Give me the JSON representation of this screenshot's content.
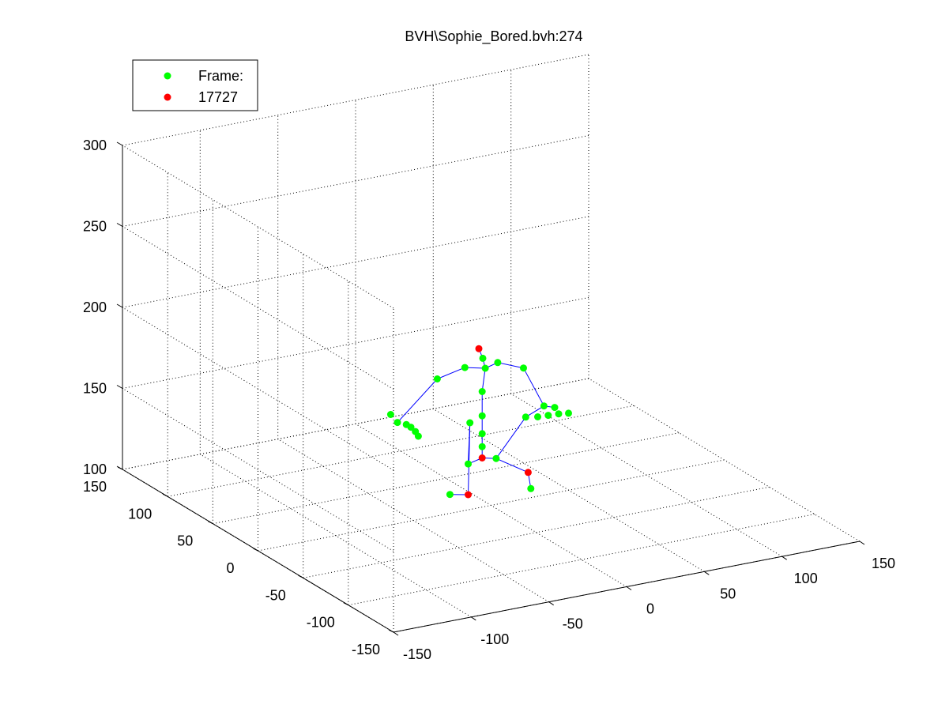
{
  "chart_data": {
    "type": "scatter",
    "title": "BVH\\Sophie_Bored.bvh:274",
    "xlim": [
      -150,
      150
    ],
    "ylim": [
      -150,
      150
    ],
    "zlim": [
      100,
      300
    ],
    "x_ticks": [
      "-150",
      "-100",
      "-50",
      "0",
      "50",
      "100",
      "150"
    ],
    "y_ticks": [
      "-150",
      "-100",
      "-50",
      "0",
      "50",
      "100",
      "150"
    ],
    "z_ticks": [
      "100",
      "150",
      "200",
      "250",
      "300"
    ],
    "grid": true,
    "legend": {
      "placement": "top-left",
      "entries": [
        {
          "label": "Frame:",
          "color": "#00ff00"
        },
        {
          "label": "17727",
          "color": "#ff0000"
        }
      ]
    },
    "colors": {
      "joint": "#00ff00",
      "end_effector": "#ff0000",
      "bone": "#0000ff"
    },
    "joints": [
      {
        "name": "head-top",
        "x": -5,
        "y": 5,
        "z": 196,
        "color": "red"
      },
      {
        "name": "head",
        "x": -3,
        "y": 4,
        "z": 190
      },
      {
        "name": "neck",
        "x": -2,
        "y": 3,
        "z": 184
      },
      {
        "name": "neck-left",
        "x": -14,
        "y": 5,
        "z": 186
      },
      {
        "name": "neck-right",
        "x": 6,
        "y": 3,
        "z": 186
      },
      {
        "name": "left-shoulder",
        "x": -30,
        "y": 8,
        "z": 181
      },
      {
        "name": "right-shoulder",
        "x": 22,
        "y": 2,
        "z": 180
      },
      {
        "name": "spine-3",
        "x": -4,
        "y": 3,
        "z": 170
      },
      {
        "name": "spine-2",
        "x": -4,
        "y": 3,
        "z": 155
      },
      {
        "name": "spine-1",
        "x": -4,
        "y": 3,
        "z": 144
      },
      {
        "name": "spine-0",
        "x": -4,
        "y": 3,
        "z": 136
      },
      {
        "name": "hips",
        "x": -4,
        "y": 3,
        "z": 129,
        "color": "red"
      },
      {
        "name": "left-hip",
        "x": -13,
        "y": 3,
        "z": 127
      },
      {
        "name": "right-hip",
        "x": 5,
        "y": 3,
        "z": 127
      },
      {
        "name": "left-knee",
        "x": -9,
        "y": 8,
        "z": 150
      },
      {
        "name": "left-ankle",
        "x": -13,
        "y": 3,
        "z": 108,
        "color": "red"
      },
      {
        "name": "left-toe",
        "x": -23,
        "y": 6,
        "z": 109
      },
      {
        "name": "right-ankle",
        "x": 25,
        "y": 2,
        "z": 115,
        "color": "red"
      },
      {
        "name": "right-toe",
        "x": 25,
        "y": -1,
        "z": 106
      },
      {
        "name": "left-wrist",
        "x": -44,
        "y": 28,
        "z": 150
      },
      {
        "name": "left-hand-1",
        "x": -40,
        "y": 25,
        "z": 149
      },
      {
        "name": "left-hand-2",
        "x": -40,
        "y": 20,
        "z": 149
      },
      {
        "name": "left-hand-3",
        "x": -40,
        "y": 15,
        "z": 148
      },
      {
        "name": "left-hand-4",
        "x": -41,
        "y": 10,
        "z": 147
      },
      {
        "name": "left-hand-5",
        "x": -46,
        "y": 32,
        "z": 154
      },
      {
        "name": "right-elbow",
        "x": 34,
        "y": 0,
        "z": 155
      },
      {
        "name": "right-wrist",
        "x": 38,
        "y": -5,
        "z": 155
      },
      {
        "name": "right-hand-1",
        "x": 24,
        "y": 3,
        "z": 149
      },
      {
        "name": "right-hand-2",
        "x": 30,
        "y": 0,
        "z": 149
      },
      {
        "name": "right-hand-3",
        "x": 35,
        "y": -3,
        "z": 150
      },
      {
        "name": "right-hand-4",
        "x": 40,
        "y": -6,
        "z": 151
      },
      {
        "name": "right-hand-5",
        "x": 44,
        "y": -10,
        "z": 152
      }
    ],
    "bones": [
      [
        "head-top",
        "head"
      ],
      [
        "head",
        "neck"
      ],
      [
        "neck",
        "neck-left"
      ],
      [
        "neck",
        "neck-right"
      ],
      [
        "neck-left",
        "left-shoulder"
      ],
      [
        "neck-right",
        "right-shoulder"
      ],
      [
        "left-shoulder",
        "left-wrist"
      ],
      [
        "right-shoulder",
        "right-elbow"
      ],
      [
        "right-elbow",
        "right-wrist"
      ],
      [
        "right-elbow",
        "right-hand-1"
      ],
      [
        "neck",
        "spine-3"
      ],
      [
        "spine-3",
        "spine-2"
      ],
      [
        "spine-2",
        "spine-1"
      ],
      [
        "spine-1",
        "spine-0"
      ],
      [
        "spine-0",
        "hips"
      ],
      [
        "hips",
        "left-hip"
      ],
      [
        "hips",
        "right-hip"
      ],
      [
        "left-hip",
        "left-knee"
      ],
      [
        "left-knee",
        "left-ankle"
      ],
      [
        "left-ankle",
        "left-toe"
      ],
      [
        "right-hip",
        "right-hand-1"
      ],
      [
        "right-hip",
        "right-ankle"
      ],
      [
        "right-ankle",
        "right-toe"
      ]
    ]
  }
}
